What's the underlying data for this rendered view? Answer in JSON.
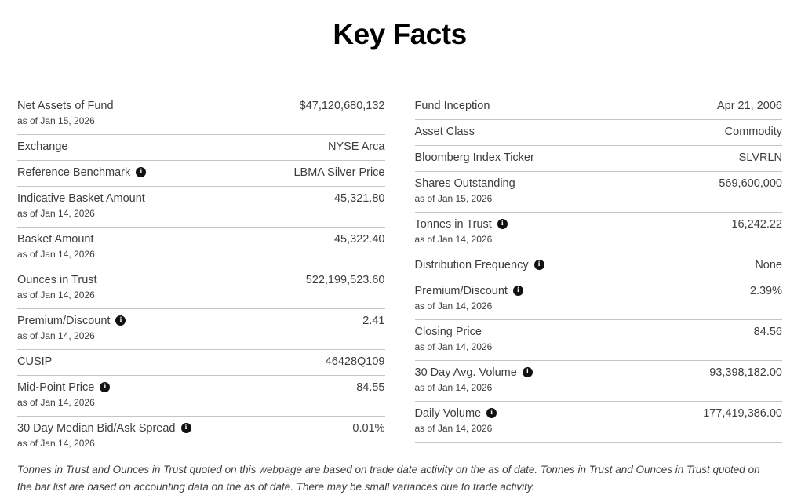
{
  "page": {
    "title": "Key Facts"
  },
  "icons": {
    "info_glyph": "i"
  },
  "colors": {
    "text": "#3c3e40",
    "divider": "#c5c5c5",
    "title": "#000000",
    "info_icon_bg": "#111111",
    "info_icon_fg": "#ffffff",
    "background": "#ffffff"
  },
  "columns": {
    "left": {
      "rows": [
        {
          "label": "Net Assets of Fund",
          "as_of": "as of Jan 15, 2026",
          "value": "$47,120,680,132",
          "has_info": false
        },
        {
          "label": "Exchange",
          "as_of": "",
          "value": "NYSE Arca",
          "has_info": false
        },
        {
          "label": "Reference Benchmark",
          "as_of": "",
          "value": "LBMA Silver Price",
          "has_info": true
        },
        {
          "label": "Indicative Basket Amount",
          "as_of": "as of Jan 14, 2026",
          "value": "45,321.80",
          "has_info": false
        },
        {
          "label": "Basket Amount",
          "as_of": "as of Jan 14, 2026",
          "value": "45,322.40",
          "has_info": false
        },
        {
          "label": "Ounces in Trust",
          "as_of": "as of Jan 14, 2026",
          "value": "522,199,523.60",
          "has_info": false
        },
        {
          "label": "Premium/Discount",
          "as_of": "as of Jan 14, 2026",
          "value": "2.41",
          "has_info": true
        },
        {
          "label": "CUSIP",
          "as_of": "",
          "value": "46428Q109",
          "has_info": false
        },
        {
          "label": "Mid-Point Price",
          "as_of": "as of Jan 14, 2026",
          "value": "84.55",
          "has_info": true
        },
        {
          "label": "30 Day Median Bid/Ask Spread",
          "as_of": "as of Jan 14, 2026",
          "value": "0.01%",
          "has_info": true
        }
      ]
    },
    "right": {
      "rows": [
        {
          "label": "Fund Inception",
          "as_of": "",
          "value": "Apr 21, 2006",
          "has_info": false
        },
        {
          "label": "Asset Class",
          "as_of": "",
          "value": "Commodity",
          "has_info": false
        },
        {
          "label": "Bloomberg Index Ticker",
          "as_of": "",
          "value": "SLVRLN",
          "has_info": false
        },
        {
          "label": "Shares Outstanding",
          "as_of": "as of Jan 15, 2026",
          "value": "569,600,000",
          "has_info": false
        },
        {
          "label": "Tonnes in Trust",
          "as_of": "as of Jan 14, 2026",
          "value": "16,242.22",
          "has_info": true
        },
        {
          "label": "Distribution Frequency",
          "as_of": "",
          "value": "None",
          "has_info": true
        },
        {
          "label": "Premium/Discount",
          "as_of": "as of Jan 14, 2026",
          "value": "2.39%",
          "has_info": true
        },
        {
          "label": "Closing Price",
          "as_of": "as of Jan 14, 2026",
          "value": "84.56",
          "has_info": false
        },
        {
          "label": "30 Day Avg. Volume",
          "as_of": "as of Jan 14, 2026",
          "value": "93,398,182.00",
          "has_info": true
        },
        {
          "label": "Daily Volume",
          "as_of": "as of Jan 14, 2026",
          "value": "177,419,386.00",
          "has_info": true
        }
      ]
    }
  },
  "footnote": "Tonnes in Trust and Ounces in Trust quoted on this webpage are based on trade date activity on the as of date. Tonnes in Trust and Ounces in Trust quoted on the bar list are based on accounting data on the as of date. There may be small variances due to trade activity."
}
